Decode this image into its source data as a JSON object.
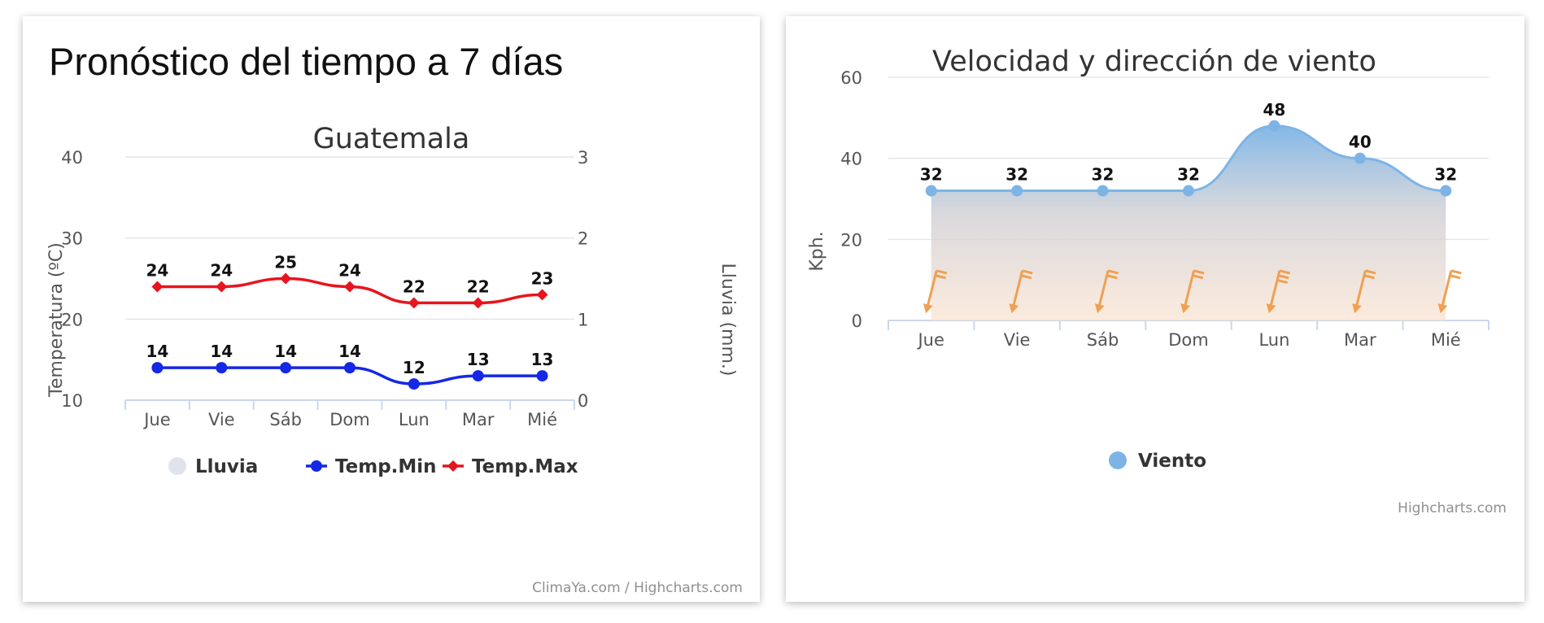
{
  "left_panel": {
    "page_title": "Pronóstico del tiempo a 7 días",
    "credits": "ClimaYa.com / Highcharts.com"
  },
  "right_panel": {
    "credits": "Highcharts.com"
  },
  "chart_data": [
    {
      "type": "line",
      "title": "Guatemala",
      "categories": [
        "Jue",
        "Vie",
        "Sáb",
        "Dom",
        "Lun",
        "Mar",
        "Mié"
      ],
      "ylabel": "Temperatura (ºC)",
      "ylim": [
        10,
        40
      ],
      "yticks": [
        "10",
        "20",
        "30",
        "40"
      ],
      "y2label": "Lluvia (mm.)",
      "y2lim": [
        0,
        3
      ],
      "y2ticks": [
        "0",
        "1",
        "2",
        "3"
      ],
      "series": [
        {
          "name": "Lluvia",
          "type": "column",
          "axis": "right",
          "color": "#e0e3ec",
          "values": [
            0,
            0,
            0,
            0,
            0,
            0,
            0
          ]
        },
        {
          "name": "Temp.Min",
          "type": "spline",
          "marker": "circle",
          "color": "#1428e6",
          "values": [
            14,
            14,
            14,
            14,
            12,
            13,
            13
          ]
        },
        {
          "name": "Temp.Max",
          "type": "spline",
          "marker": "diamond",
          "color": "#e8141e",
          "values": [
            24,
            24,
            25,
            24,
            22,
            22,
            23
          ]
        }
      ],
      "legend": "bottom-center",
      "grid": true
    },
    {
      "type": "area",
      "title": "Velocidad y dirección de viento",
      "categories": [
        "Jue",
        "Vie",
        "Sáb",
        "Dom",
        "Lun",
        "Mar",
        "Mié"
      ],
      "ylabel": "Kph.",
      "ylim": [
        0,
        60
      ],
      "yticks": [
        "0",
        "20",
        "40",
        "60"
      ],
      "series": [
        {
          "name": "Viento",
          "color": "#7db4e6",
          "values": [
            32,
            32,
            32,
            32,
            48,
            40,
            32
          ]
        }
      ],
      "wind_direction_icon": "wind-barb-icon",
      "wind_barb_color": "#f0a050",
      "area_fill_colors": [
        "#7db4e6",
        "#fbe4d2"
      ],
      "legend": "bottom-center",
      "grid": true
    }
  ]
}
